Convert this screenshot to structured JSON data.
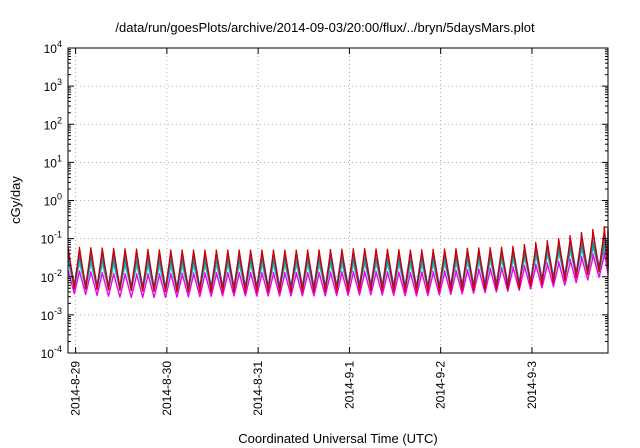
{
  "chart_data": {
    "type": "line",
    "title": "/data/run/goesPlots/archive/2014-09-03/20:00/flux/../bryn/5daysMars.plot",
    "xlabel": "Coordinated Universal Time (UTC)",
    "ylabel": "cGy/day",
    "yscale": "log",
    "ylim": [
      0.0001,
      10000
    ],
    "xlim": [
      "2014-08-28T22:00",
      "2014-09-03T20:00"
    ],
    "grid": true,
    "legend": "none",
    "y_ticks": [
      {
        "base": "10",
        "exp": "-4"
      },
      {
        "base": "10",
        "exp": "-3"
      },
      {
        "base": "10",
        "exp": "-2"
      },
      {
        "base": "10",
        "exp": "-1"
      },
      {
        "base": "10",
        "exp": "0"
      },
      {
        "base": "10",
        "exp": "1"
      },
      {
        "base": "10",
        "exp": "2"
      },
      {
        "base": "10",
        "exp": "3"
      },
      {
        "base": "10",
        "exp": "4"
      }
    ],
    "x_ticks": [
      "2014-8-29",
      "2014-8-30",
      "2014-8-31",
      "2014-9-1",
      "2014-9-2",
      "2014-9-3"
    ],
    "series": [
      {
        "color": "#cc0000",
        "values": [
          0.06,
          0.055,
          0.05,
          0.05,
          0.05,
          0.05,
          0.055,
          0.05,
          0.055,
          0.06,
          0.1,
          0.22
        ]
      },
      {
        "color": "#2255cc",
        "values": [
          0.05,
          0.045,
          0.042,
          0.045,
          0.045,
          0.045,
          0.05,
          0.045,
          0.05,
          0.055,
          0.09,
          0.18
        ]
      },
      {
        "color": "#1a9090",
        "values": [
          0.035,
          0.03,
          0.028,
          0.03,
          0.03,
          0.03,
          0.032,
          0.03,
          0.035,
          0.04,
          0.06,
          0.1
        ]
      },
      {
        "color": "#22cccc",
        "values": [
          0.025,
          0.022,
          0.02,
          0.022,
          0.022,
          0.022,
          0.024,
          0.022,
          0.025,
          0.03,
          0.045,
          0.08
        ]
      },
      {
        "color": "#ee00ee",
        "values": [
          0.015,
          0.012,
          0.012,
          0.013,
          0.013,
          0.013,
          0.014,
          0.013,
          0.015,
          0.018,
          0.025,
          0.05
        ]
      }
    ]
  }
}
